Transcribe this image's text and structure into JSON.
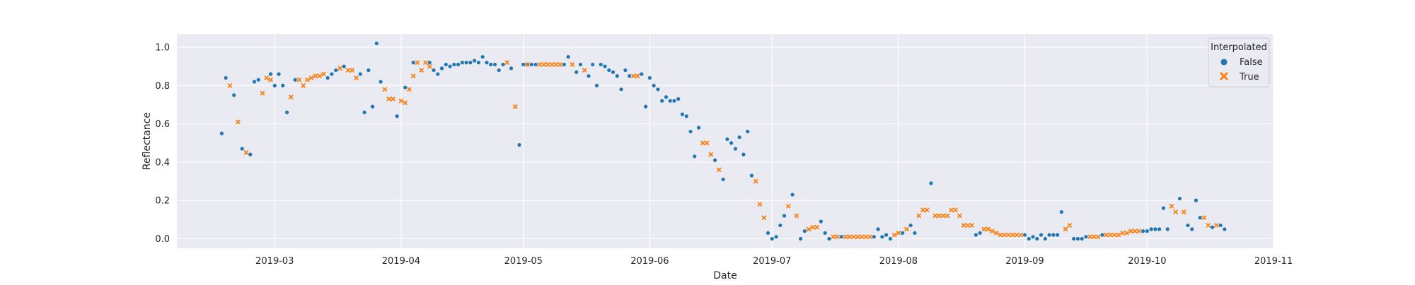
{
  "chart_data": {
    "type": "scatter",
    "title": "",
    "xlabel": "Date",
    "ylabel": "Reflectance",
    "x_type": "date",
    "xlim": [
      "2019-02-05",
      "2019-11-01"
    ],
    "ylim": [
      -0.05,
      1.07
    ],
    "x_ticks": [
      "2019-03-01",
      "2019-04-01",
      "2019-05-01",
      "2019-06-01",
      "2019-07-01",
      "2019-08-01",
      "2019-09-01",
      "2019-10-01",
      "2019-11-01"
    ],
    "x_tick_labels": [
      "2019-03",
      "2019-04",
      "2019-05",
      "2019-06",
      "2019-07",
      "2019-08",
      "2019-09",
      "2019-10",
      "2019-11"
    ],
    "y_ticks": [
      0.0,
      0.2,
      0.4,
      0.6,
      0.8,
      1.0
    ],
    "y_tick_labels": [
      "0.0",
      "0.2",
      "0.4",
      "0.6",
      "0.8",
      "1.0"
    ],
    "grid": true,
    "legend": {
      "title": "Interpolated",
      "position": "top-right",
      "entries": [
        {
          "label": "False",
          "marker": "circle",
          "color": "#1f77b4"
        },
        {
          "label": "True",
          "marker": "x",
          "color": "#ff7f0e"
        }
      ]
    },
    "colors": {
      "background": "#eaeaf2",
      "grid": "#ffffff",
      "series_false": "#1f77b4",
      "series_true": "#ff7f0e"
    },
    "series": [
      {
        "name": "False",
        "points": [
          [
            "2019-02-16",
            0.55
          ],
          [
            "2019-02-17",
            0.84
          ],
          [
            "2019-02-19",
            0.75
          ],
          [
            "2019-02-21",
            0.47
          ],
          [
            "2019-02-23",
            0.44
          ],
          [
            "2019-02-24",
            0.82
          ],
          [
            "2019-02-25",
            0.83
          ],
          [
            "2019-02-28",
            0.86
          ],
          [
            "2019-03-01",
            0.8
          ],
          [
            "2019-03-02",
            0.86
          ],
          [
            "2019-03-03",
            0.8
          ],
          [
            "2019-03-04",
            0.66
          ],
          [
            "2019-03-06",
            0.83
          ],
          [
            "2019-03-14",
            0.84
          ],
          [
            "2019-03-15",
            0.86
          ],
          [
            "2019-03-16",
            0.88
          ],
          [
            "2019-03-18",
            0.9
          ],
          [
            "2019-03-22",
            0.86
          ],
          [
            "2019-03-23",
            0.66
          ],
          [
            "2019-03-24",
            0.88
          ],
          [
            "2019-03-25",
            0.69
          ],
          [
            "2019-03-26",
            1.02
          ],
          [
            "2019-03-27",
            0.82
          ],
          [
            "2019-03-31",
            0.64
          ],
          [
            "2019-04-02",
            0.79
          ],
          [
            "2019-04-04",
            0.92
          ],
          [
            "2019-04-08",
            0.92
          ],
          [
            "2019-04-09",
            0.88
          ],
          [
            "2019-04-10",
            0.86
          ],
          [
            "2019-04-11",
            0.89
          ],
          [
            "2019-04-12",
            0.91
          ],
          [
            "2019-04-13",
            0.9
          ],
          [
            "2019-04-14",
            0.91
          ],
          [
            "2019-04-15",
            0.91
          ],
          [
            "2019-04-16",
            0.92
          ],
          [
            "2019-04-17",
            0.92
          ],
          [
            "2019-04-18",
            0.92
          ],
          [
            "2019-04-19",
            0.93
          ],
          [
            "2019-04-20",
            0.92
          ],
          [
            "2019-04-21",
            0.95
          ],
          [
            "2019-04-22",
            0.92
          ],
          [
            "2019-04-23",
            0.91
          ],
          [
            "2019-04-24",
            0.91
          ],
          [
            "2019-04-25",
            0.88
          ],
          [
            "2019-04-26",
            0.91
          ],
          [
            "2019-04-28",
            0.89
          ],
          [
            "2019-04-30",
            0.49
          ],
          [
            "2019-05-01",
            0.91
          ],
          [
            "2019-05-02",
            0.91
          ],
          [
            "2019-05-03",
            0.91
          ],
          [
            "2019-05-04",
            0.91
          ],
          [
            "2019-05-11",
            0.91
          ],
          [
            "2019-05-12",
            0.95
          ],
          [
            "2019-05-14",
            0.87
          ],
          [
            "2019-05-15",
            0.91
          ],
          [
            "2019-05-17",
            0.85
          ],
          [
            "2019-05-18",
            0.91
          ],
          [
            "2019-05-19",
            0.8
          ],
          [
            "2019-05-20",
            0.91
          ],
          [
            "2019-05-21",
            0.9
          ],
          [
            "2019-05-22",
            0.88
          ],
          [
            "2019-05-23",
            0.87
          ],
          [
            "2019-05-24",
            0.85
          ],
          [
            "2019-05-25",
            0.78
          ],
          [
            "2019-05-26",
            0.88
          ],
          [
            "2019-05-27",
            0.85
          ],
          [
            "2019-05-30",
            0.86
          ],
          [
            "2019-05-31",
            0.69
          ],
          [
            "2019-06-01",
            0.84
          ],
          [
            "2019-06-02",
            0.8
          ],
          [
            "2019-06-03",
            0.78
          ],
          [
            "2019-06-04",
            0.72
          ],
          [
            "2019-06-05",
            0.74
          ],
          [
            "2019-06-06",
            0.72
          ],
          [
            "2019-06-07",
            0.72
          ],
          [
            "2019-06-08",
            0.73
          ],
          [
            "2019-06-09",
            0.65
          ],
          [
            "2019-06-10",
            0.64
          ],
          [
            "2019-06-11",
            0.56
          ],
          [
            "2019-06-12",
            0.43
          ],
          [
            "2019-06-13",
            0.58
          ],
          [
            "2019-06-17",
            0.41
          ],
          [
            "2019-06-19",
            0.31
          ],
          [
            "2019-06-20",
            0.52
          ],
          [
            "2019-06-21",
            0.5
          ],
          [
            "2019-06-22",
            0.47
          ],
          [
            "2019-06-23",
            0.53
          ],
          [
            "2019-06-24",
            0.44
          ],
          [
            "2019-06-25",
            0.56
          ],
          [
            "2019-06-26",
            0.33
          ],
          [
            "2019-06-30",
            0.03
          ],
          [
            "2019-07-01",
            0.0
          ],
          [
            "2019-07-02",
            0.01
          ],
          [
            "2019-07-03",
            0.07
          ],
          [
            "2019-07-04",
            0.12
          ],
          [
            "2019-07-06",
            0.23
          ],
          [
            "2019-07-08",
            0.0
          ],
          [
            "2019-07-09",
            0.04
          ],
          [
            "2019-07-13",
            0.09
          ],
          [
            "2019-07-14",
            0.03
          ],
          [
            "2019-07-15",
            0.0
          ],
          [
            "2019-07-18",
            0.01
          ],
          [
            "2019-07-26",
            0.01
          ],
          [
            "2019-07-27",
            0.05
          ],
          [
            "2019-07-28",
            0.01
          ],
          [
            "2019-07-29",
            0.02
          ],
          [
            "2019-07-30",
            0.0
          ],
          [
            "2019-08-02",
            0.03
          ],
          [
            "2019-08-04",
            0.07
          ],
          [
            "2019-08-05",
            0.03
          ],
          [
            "2019-08-09",
            0.29
          ],
          [
            "2019-08-20",
            0.02
          ],
          [
            "2019-08-21",
            0.03
          ],
          [
            "2019-09-01",
            0.02
          ],
          [
            "2019-09-02",
            0.0
          ],
          [
            "2019-09-03",
            0.01
          ],
          [
            "2019-09-04",
            0.0
          ],
          [
            "2019-09-05",
            0.02
          ],
          [
            "2019-09-06",
            0.0
          ],
          [
            "2019-09-07",
            0.02
          ],
          [
            "2019-09-08",
            0.02
          ],
          [
            "2019-09-09",
            0.02
          ],
          [
            "2019-09-10",
            0.14
          ],
          [
            "2019-09-13",
            0.0
          ],
          [
            "2019-09-14",
            0.0
          ],
          [
            "2019-09-15",
            0.0
          ],
          [
            "2019-09-16",
            0.01
          ],
          [
            "2019-09-20",
            0.02
          ],
          [
            "2019-09-30",
            0.04
          ],
          [
            "2019-10-01",
            0.04
          ],
          [
            "2019-10-02",
            0.05
          ],
          [
            "2019-10-03",
            0.05
          ],
          [
            "2019-10-04",
            0.05
          ],
          [
            "2019-10-05",
            0.16
          ],
          [
            "2019-10-06",
            0.05
          ],
          [
            "2019-10-09",
            0.21
          ],
          [
            "2019-10-11",
            0.07
          ],
          [
            "2019-10-12",
            0.05
          ],
          [
            "2019-10-13",
            0.2
          ],
          [
            "2019-10-14",
            0.11
          ],
          [
            "2019-10-17",
            0.06
          ],
          [
            "2019-10-19",
            0.07
          ],
          [
            "2019-10-20",
            0.05
          ]
        ]
      },
      {
        "name": "True",
        "points": [
          [
            "2019-02-18",
            0.8
          ],
          [
            "2019-02-20",
            0.61
          ],
          [
            "2019-02-22",
            0.45
          ],
          [
            "2019-02-26",
            0.76
          ],
          [
            "2019-02-27",
            0.84
          ],
          [
            "2019-02-28",
            0.83
          ],
          [
            "2019-03-05",
            0.74
          ],
          [
            "2019-03-07",
            0.83
          ],
          [
            "2019-03-08",
            0.8
          ],
          [
            "2019-03-09",
            0.83
          ],
          [
            "2019-03-10",
            0.84
          ],
          [
            "2019-03-11",
            0.85
          ],
          [
            "2019-03-12",
            0.85
          ],
          [
            "2019-03-13",
            0.86
          ],
          [
            "2019-03-17",
            0.89
          ],
          [
            "2019-03-19",
            0.88
          ],
          [
            "2019-03-20",
            0.88
          ],
          [
            "2019-03-21",
            0.84
          ],
          [
            "2019-03-28",
            0.78
          ],
          [
            "2019-03-29",
            0.73
          ],
          [
            "2019-03-30",
            0.73
          ],
          [
            "2019-04-01",
            0.72
          ],
          [
            "2019-04-02",
            0.71
          ],
          [
            "2019-04-03",
            0.78
          ],
          [
            "2019-04-04",
            0.85
          ],
          [
            "2019-04-05",
            0.92
          ],
          [
            "2019-04-06",
            0.88
          ],
          [
            "2019-04-07",
            0.92
          ],
          [
            "2019-04-08",
            0.9
          ],
          [
            "2019-04-27",
            0.92
          ],
          [
            "2019-04-29",
            0.69
          ],
          [
            "2019-05-02",
            0.91
          ],
          [
            "2019-05-05",
            0.91
          ],
          [
            "2019-05-06",
            0.91
          ],
          [
            "2019-05-07",
            0.91
          ],
          [
            "2019-05-08",
            0.91
          ],
          [
            "2019-05-09",
            0.91
          ],
          [
            "2019-05-10",
            0.91
          ],
          [
            "2019-05-13",
            0.91
          ],
          [
            "2019-05-16",
            0.88
          ],
          [
            "2019-05-28",
            0.85
          ],
          [
            "2019-05-29",
            0.85
          ],
          [
            "2019-06-14",
            0.5
          ],
          [
            "2019-06-15",
            0.5
          ],
          [
            "2019-06-16",
            0.44
          ],
          [
            "2019-06-18",
            0.36
          ],
          [
            "2019-06-27",
            0.3
          ],
          [
            "2019-06-28",
            0.18
          ],
          [
            "2019-06-29",
            0.11
          ],
          [
            "2019-07-05",
            0.17
          ],
          [
            "2019-07-07",
            0.12
          ],
          [
            "2019-07-10",
            0.05
          ],
          [
            "2019-07-11",
            0.06
          ],
          [
            "2019-07-12",
            0.06
          ],
          [
            "2019-07-16",
            0.01
          ],
          [
            "2019-07-17",
            0.01
          ],
          [
            "2019-07-19",
            0.01
          ],
          [
            "2019-07-20",
            0.01
          ],
          [
            "2019-07-21",
            0.01
          ],
          [
            "2019-07-22",
            0.01
          ],
          [
            "2019-07-23",
            0.01
          ],
          [
            "2019-07-24",
            0.01
          ],
          [
            "2019-07-25",
            0.01
          ],
          [
            "2019-07-31",
            0.02
          ],
          [
            "2019-08-01",
            0.03
          ],
          [
            "2019-08-03",
            0.05
          ],
          [
            "2019-08-06",
            0.12
          ],
          [
            "2019-08-07",
            0.15
          ],
          [
            "2019-08-08",
            0.15
          ],
          [
            "2019-08-10",
            0.12
          ],
          [
            "2019-08-11",
            0.12
          ],
          [
            "2019-08-12",
            0.12
          ],
          [
            "2019-08-13",
            0.12
          ],
          [
            "2019-08-14",
            0.15
          ],
          [
            "2019-08-15",
            0.15
          ],
          [
            "2019-08-16",
            0.12
          ],
          [
            "2019-08-17",
            0.07
          ],
          [
            "2019-08-18",
            0.07
          ],
          [
            "2019-08-19",
            0.07
          ],
          [
            "2019-08-22",
            0.05
          ],
          [
            "2019-08-23",
            0.05
          ],
          [
            "2019-08-24",
            0.04
          ],
          [
            "2019-08-25",
            0.03
          ],
          [
            "2019-08-26",
            0.02
          ],
          [
            "2019-08-27",
            0.02
          ],
          [
            "2019-08-28",
            0.02
          ],
          [
            "2019-08-29",
            0.02
          ],
          [
            "2019-08-30",
            0.02
          ],
          [
            "2019-08-31",
            0.02
          ],
          [
            "2019-09-11",
            0.05
          ],
          [
            "2019-09-12",
            0.07
          ],
          [
            "2019-09-17",
            0.01
          ],
          [
            "2019-09-18",
            0.01
          ],
          [
            "2019-09-19",
            0.01
          ],
          [
            "2019-09-21",
            0.02
          ],
          [
            "2019-09-22",
            0.02
          ],
          [
            "2019-09-23",
            0.02
          ],
          [
            "2019-09-24",
            0.02
          ],
          [
            "2019-09-25",
            0.03
          ],
          [
            "2019-09-26",
            0.03
          ],
          [
            "2019-09-27",
            0.04
          ],
          [
            "2019-09-28",
            0.04
          ],
          [
            "2019-09-29",
            0.04
          ],
          [
            "2019-10-07",
            0.17
          ],
          [
            "2019-10-08",
            0.14
          ],
          [
            "2019-10-10",
            0.14
          ],
          [
            "2019-10-15",
            0.11
          ],
          [
            "2019-10-16",
            0.07
          ],
          [
            "2019-10-18",
            0.07
          ]
        ]
      }
    ]
  }
}
